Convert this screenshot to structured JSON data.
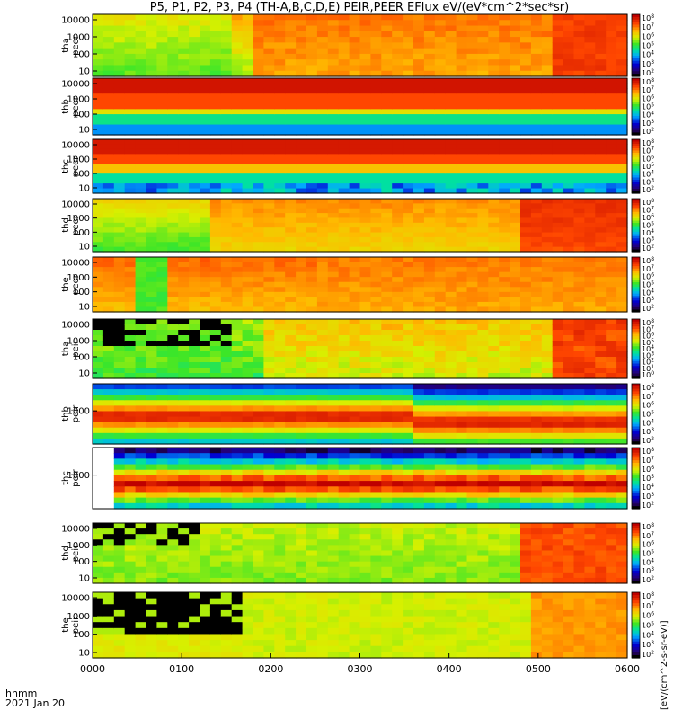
{
  "title": "P5, P1, P2, P3, P4 (TH-A,B,C,D,E) PEIR,PEER EFlux eV/(eV*cm^2*sec*sr)",
  "footer": {
    "label": "hhmm",
    "date": "2021 Jan 20"
  },
  "colorbar_units": "[eV/(cm^2-s-sr-eV)]",
  "chart_data": {
    "type": "heatmap",
    "x_ticks": [
      "0000",
      "0100",
      "0200",
      "0300",
      "0400",
      "0500",
      "0600"
    ],
    "xlim_minutes": [
      0,
      360
    ],
    "panels": [
      {
        "id": "tha-peer",
        "ylabel": [
          "tha",
          "peer"
        ],
        "ytick_labels": [
          "10000",
          "1000",
          "100",
          "10"
        ],
        "cbar_ticks": [
          "10^8",
          "10^7",
          "10^6",
          "10^5",
          "10^4",
          "10^3",
          "10^2"
        ],
        "pattern": "a"
      },
      {
        "id": "thb-peer",
        "ylabel": [
          "thb",
          "peer"
        ],
        "ytick_labels": [
          "10000",
          "1000",
          "100",
          "10"
        ],
        "cbar_ticks": [
          "10^8",
          "10^7",
          "10^6",
          "10^5",
          "10^4",
          "10^3",
          "10^2"
        ],
        "pattern": "b"
      },
      {
        "id": "thc-peer",
        "ylabel": [
          "thc",
          "peer"
        ],
        "ytick_labels": [
          "10000",
          "1000",
          "100",
          "10"
        ],
        "cbar_ticks": [
          "10^8",
          "10^7",
          "10^6",
          "10^5",
          "10^4",
          "10^3",
          "10^2"
        ],
        "pattern": "c"
      },
      {
        "id": "thd-peer",
        "ylabel": [
          "thd",
          "peer"
        ],
        "ytick_labels": [
          "10000",
          "1000",
          "100",
          "10"
        ],
        "cbar_ticks": [
          "10^8",
          "10^7",
          "10^6",
          "10^5",
          "10^4",
          "10^3",
          "10^2"
        ],
        "pattern": "d"
      },
      {
        "id": "the-peer",
        "ylabel": [
          "the",
          "peer"
        ],
        "ytick_labels": [
          "10000",
          "1000",
          "100",
          "10"
        ],
        "cbar_ticks": [
          "10^8",
          "10^7",
          "10^6",
          "10^5",
          "10^4",
          "10^3",
          "10^2"
        ],
        "pattern": "e"
      },
      {
        "id": "tha-peir",
        "ylabel": [
          "tha",
          "peir"
        ],
        "ytick_labels": [
          "10000",
          "1000",
          "100",
          "10"
        ],
        "cbar_ticks": [
          "10^8",
          "10^7",
          "10^6",
          "10^5",
          "10^4",
          "10^3",
          "10^2",
          "10^1",
          "10^0"
        ],
        "pattern": "f"
      },
      {
        "id": "thb-peir",
        "ylabel": [
          "thb",
          "peir"
        ],
        "ytick_labels": [
          "1000"
        ],
        "cbar_ticks": [
          "10^8",
          "10^7",
          "10^6",
          "10^5",
          "10^4",
          "10^3",
          "10^2"
        ],
        "pattern": "g"
      },
      {
        "id": "thc-peir",
        "ylabel": [
          "thc",
          "peir"
        ],
        "ytick_labels": [
          "1000"
        ],
        "cbar_ticks": [
          "10^8",
          "10^7",
          "10^6",
          "10^5",
          "10^4",
          "10^3",
          "10^2"
        ],
        "pattern": "h"
      },
      {
        "id": "thd-peir",
        "ylabel": [
          "thd",
          "peir"
        ],
        "ytick_labels": [
          "10000",
          "1000",
          "100",
          "10"
        ],
        "cbar_ticks": [
          "10^8",
          "10^7",
          "10^6",
          "10^5",
          "10^4",
          "10^3",
          "10^2"
        ],
        "pattern": "i"
      },
      {
        "id": "the-peir",
        "ylabel": [
          "the",
          "peir"
        ],
        "ytick_labels": [
          "10000",
          "1000",
          "100",
          "10"
        ],
        "cbar_ticks": [
          "10^8",
          "10^7",
          "10^6",
          "10^5",
          "10^4",
          "10^3",
          "10^2"
        ],
        "pattern": "j"
      }
    ]
  }
}
